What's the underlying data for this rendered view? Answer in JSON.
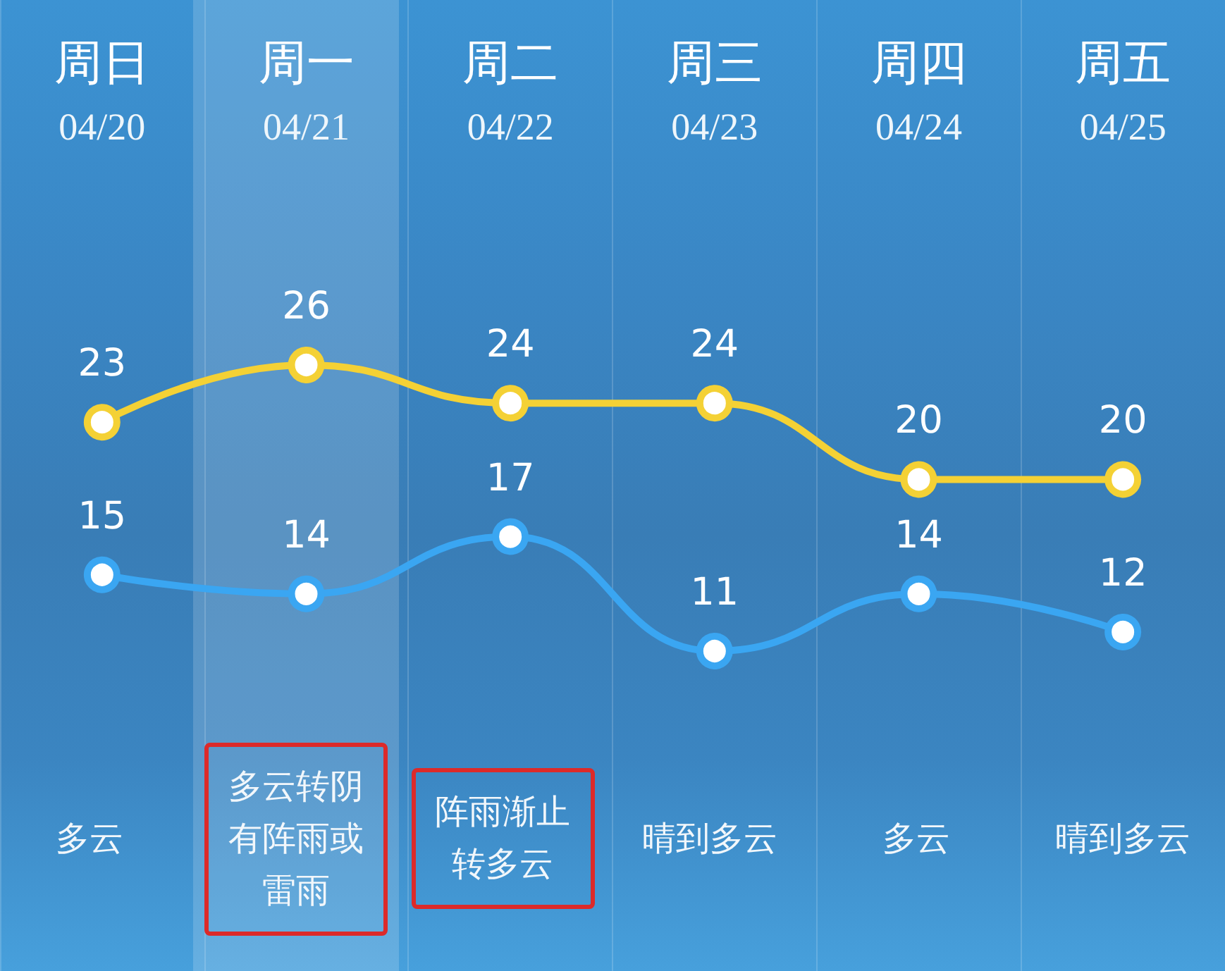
{
  "chart_data": {
    "type": "line",
    "categories": [
      "周日\n04/20",
      "周一\n04/21",
      "周二\n04/22",
      "周三\n04/23",
      "周四\n04/24",
      "周五\n04/25"
    ],
    "series": [
      {
        "color": "#f4d135",
        "values": [
          23,
          26,
          24,
          24,
          20,
          20
        ]
      },
      {
        "color": "#3aa6f2",
        "values": [
          15,
          14,
          17,
          11,
          14,
          12
        ]
      }
    ],
    "data_labels": true,
    "marker": "circle",
    "grid": "x",
    "annotations": [
      "多云",
      "多云转阴有阵雨或雷雨",
      "阵雨渐止转多云",
      "晴到多云",
      "多云",
      "晴到多云"
    ]
  }
}
